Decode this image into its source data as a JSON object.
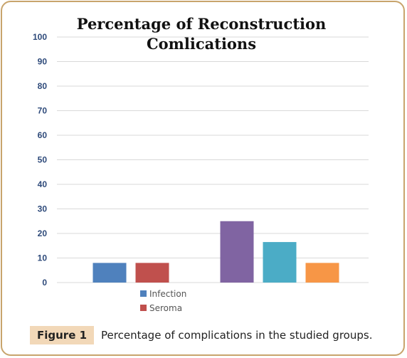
{
  "chart_data": {
    "type": "bar",
    "title_lines": [
      "Percentage of Reconstruction",
      "Comlications"
    ],
    "ylim": [
      0,
      100
    ],
    "yticks": [
      0,
      10,
      20,
      30,
      40,
      50,
      60,
      70,
      80,
      90,
      100
    ],
    "grid": true,
    "bars": [
      {
        "value": 8,
        "color": "#4f81bd"
      },
      {
        "value": 8,
        "color": "#c0504d"
      },
      {
        "value": 25,
        "color": "#8064a2"
      },
      {
        "value": 16.5,
        "color": "#4bacc6"
      },
      {
        "value": 8,
        "color": "#f79646"
      }
    ],
    "legend": [
      {
        "label": "Infection",
        "color": "#4f81bd"
      },
      {
        "label": "Seroma",
        "color": "#c0504d"
      }
    ],
    "legend_position": "bottom-left"
  },
  "caption": {
    "label": "Figure 1",
    "text": "Percentage of complications in the studied groups."
  }
}
